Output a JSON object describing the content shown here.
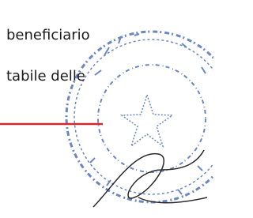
{
  "lines": [
    "beneficiario",
    "tabile delle"
  ]
}
